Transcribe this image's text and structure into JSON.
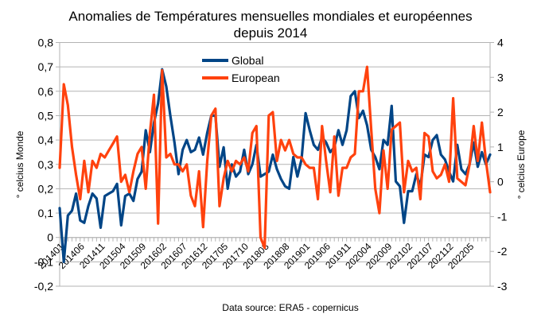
{
  "chart_data": {
    "type": "line",
    "title": "Anomalies de Températures mensuelles mondiales et européennes",
    "subtitle": "depuis 2014",
    "ylabel": "° celcius Monde",
    "y2label": "° celcius Europe",
    "xlabel": "",
    "source": "Data source: ERA5 - copernicus",
    "ylim": [
      -0.2,
      0.8
    ],
    "y2lim": [
      -3,
      4
    ],
    "yticks": [
      "-0,2",
      "-0,1",
      "0",
      "0,1",
      "0,2",
      "0,3",
      "0,4",
      "0,5",
      "0,6",
      "0,7",
      "0,8"
    ],
    "y2ticks": [
      "-3",
      "-2",
      "-1",
      "0",
      "1",
      "2",
      "3",
      "4"
    ],
    "grid": true,
    "legend_position": "top-center",
    "x_tick_labels": [
      "201401",
      "201406",
      "201411",
      "201504",
      "201509",
      "201602",
      "201607",
      "201612",
      "201705",
      "201710",
      "201803",
      "201808",
      "201901",
      "201906",
      "201911",
      "202004",
      "202009",
      "202102",
      "202107",
      "202112",
      "202205"
    ],
    "x_start": "201401",
    "x_end": "202210",
    "series": [
      {
        "name": "Global",
        "axis": "left",
        "color": "#004586",
        "values": [
          0.12,
          -0.1,
          0.09,
          0.11,
          0.18,
          0.07,
          0.06,
          0.13,
          0.18,
          0.16,
          0.04,
          0.17,
          0.18,
          0.19,
          0.22,
          0.05,
          0.17,
          0.18,
          0.15,
          0.24,
          0.27,
          0.44,
          0.35,
          0.47,
          0.55,
          0.69,
          0.62,
          0.5,
          0.39,
          0.26,
          0.36,
          0.4,
          0.35,
          0.36,
          0.41,
          0.34,
          0.43,
          0.5,
          0.5,
          0.29,
          0.37,
          0.2,
          0.3,
          0.25,
          0.27,
          0.36,
          0.26,
          0.3,
          0.38,
          0.25,
          0.26,
          0.27,
          0.34,
          0.28,
          0.24,
          0.21,
          0.2,
          0.33,
          0.25,
          0.32,
          0.51,
          0.44,
          0.38,
          0.36,
          0.41,
          0.39,
          0.35,
          0.37,
          0.44,
          0.38,
          0.44,
          0.58,
          0.6,
          0.49,
          0.52,
          0.46,
          0.36,
          0.33,
          0.28,
          0.4,
          0.38,
          0.54,
          0.23,
          0.21,
          0.06,
          0.19,
          0.19,
          0.26,
          0.21,
          0.34,
          0.33,
          0.4,
          0.42,
          0.34,
          0.32,
          0.27,
          0.23,
          0.38,
          0.28,
          0.26,
          0.3,
          0.39,
          0.29,
          0.35,
          0.3,
          0.34
        ]
      },
      {
        "name": "European",
        "axis": "right",
        "color": "#ff420e",
        "values": [
          0.4,
          2.8,
          2.2,
          1.0,
          0.2,
          -0.5,
          0.6,
          -0.3,
          0.6,
          0.4,
          0.8,
          0.7,
          0.9,
          1.1,
          1.3,
          0.0,
          0.2,
          -0.3,
          0.3,
          0.8,
          1.0,
          -0.2,
          1.4,
          2.5,
          -1.2,
          3.2,
          0.7,
          0.8,
          0.5,
          0.5,
          0.3,
          0.5,
          -0.4,
          -0.7,
          0.3,
          -1.3,
          0.6,
          1.9,
          2.1,
          -0.7,
          0.1,
          0.6,
          0.3,
          0.6,
          0.5,
          0.7,
          0.3,
          1.4,
          1.6,
          -1.6,
          -1.9,
          1.9,
          2.0,
          0.6,
          1.2,
          0.9,
          1.2,
          0.8,
          0.7,
          0.7,
          0.5,
          0.4,
          0.4,
          -0.5,
          1.6,
          0.6,
          -0.3,
          1.3,
          -0.4,
          0.4,
          0.4,
          0.7,
          0.8,
          2.6,
          2.6,
          3.3,
          1.5,
          -0.2,
          -0.9,
          0.9,
          -0.2,
          1.5,
          1.6,
          1.7,
          -0.3,
          0.6,
          0.3,
          0.4,
          -0.5,
          1.4,
          1.3,
          0.3,
          0.1,
          0.2,
          0.5,
          0.0,
          2.4,
          0.1,
          0.0,
          -0.1,
          0.5,
          1.6,
          0.6,
          1.7,
          0.6,
          -0.3
        ]
      }
    ]
  }
}
